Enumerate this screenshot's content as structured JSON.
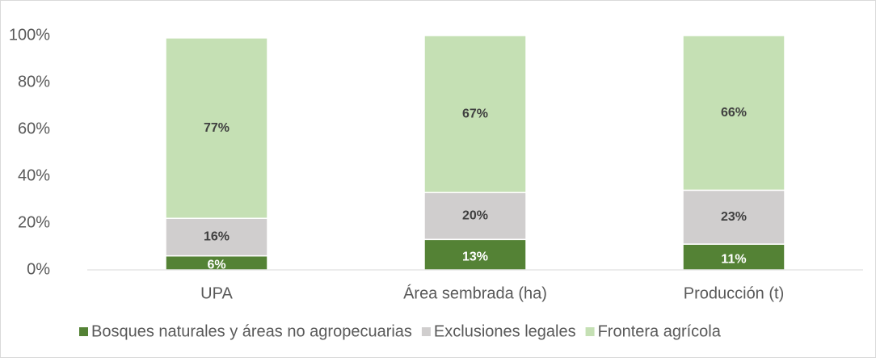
{
  "chart_data": {
    "type": "stacked_bar",
    "categories": [
      "UPA",
      "Área sembrada (ha)",
      "Producción (t)"
    ],
    "series": [
      {
        "name": "Bosques naturales y áreas no agropecuarias",
        "color": "#548235",
        "values": [
          6,
          13,
          11
        ],
        "value_labels": [
          "6%",
          "13%",
          "11%"
        ]
      },
      {
        "name": "Exclusiones legales",
        "color": "#d0cece",
        "values": [
          16,
          20,
          23
        ],
        "value_labels": [
          "16%",
          "20%",
          "23%"
        ]
      },
      {
        "name": "Frontera agrícola",
        "color": "#c5e0b4",
        "values": [
          77,
          67,
          66
        ],
        "value_labels": [
          "77%",
          "67%",
          "66%"
        ]
      }
    ],
    "ylim": [
      0,
      100
    ],
    "yticks": [
      {
        "value": 0,
        "label": "0%"
      },
      {
        "value": 20,
        "label": "20%"
      },
      {
        "value": 40,
        "label": "40%"
      },
      {
        "value": 60,
        "label": "60%"
      },
      {
        "value": 80,
        "label": "80%"
      },
      {
        "value": 100,
        "label": "100%"
      }
    ],
    "grid": false,
    "legend": "bottom"
  }
}
